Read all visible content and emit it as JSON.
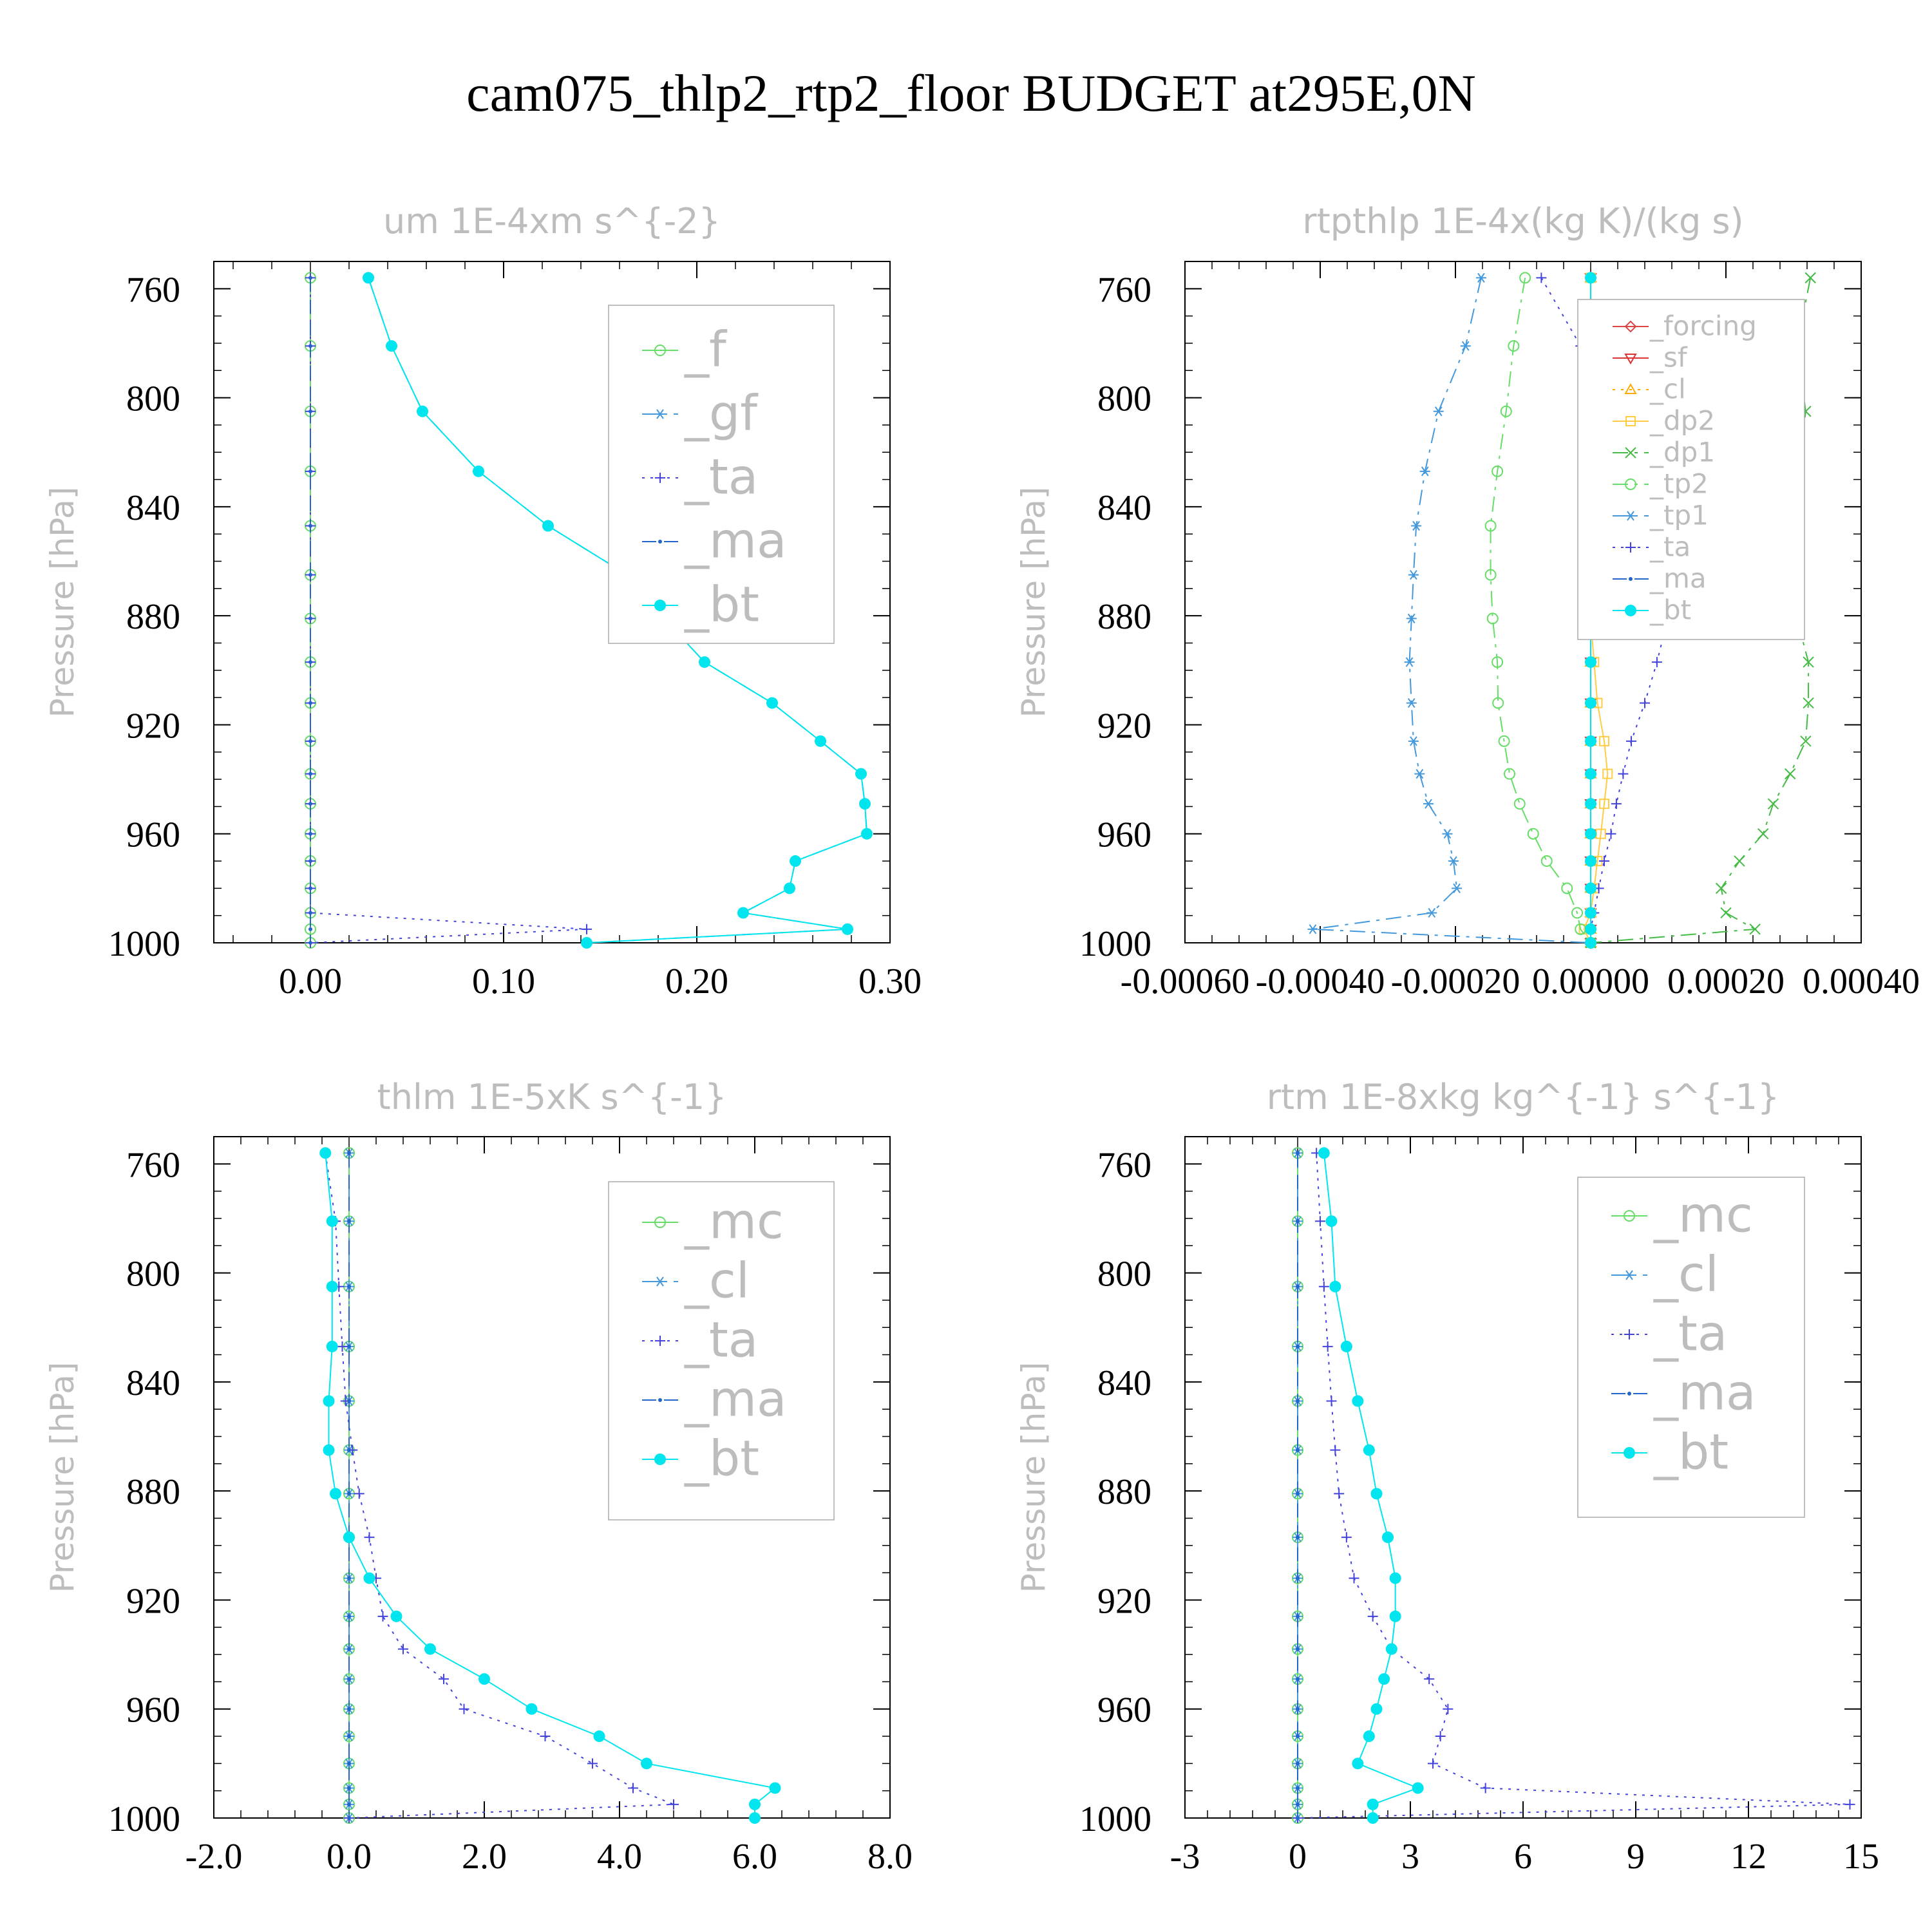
{
  "title": "cam075_thlp2_rtp2_floor  BUDGET at295E,0N",
  "chart_data": [
    {
      "type": "line",
      "title": "um  1E-4xm s^{-2}",
      "xlabel": "",
      "ylabel": "Pressure [hPa]",
      "xlim": [
        -0.05,
        0.3
      ],
      "ylim": [
        1000,
        750
      ],
      "xticks": [
        0,
        0.1,
        0.2,
        0.3
      ],
      "xtick_labels": [
        "0.00",
        "0.10",
        "0.20",
        "0.30"
      ],
      "yticks": [
        760,
        800,
        840,
        880,
        920,
        960,
        1000
      ],
      "ytick_labels": [
        "760",
        "800",
        "840",
        "880",
        "920",
        "960",
        "1000"
      ],
      "legend_position": "top-right",
      "pressure": [
        756,
        781,
        805,
        827,
        847,
        865,
        881,
        897,
        912,
        926,
        938,
        949,
        960,
        970,
        980,
        989,
        995,
        1000
      ],
      "series": [
        {
          "name": "_f",
          "color": "#66dd66",
          "marker": "circle-open",
          "dash": "none",
          "values": [
            0,
            0,
            0,
            0,
            0,
            0,
            0,
            0,
            0,
            0,
            0,
            0,
            0,
            0,
            0,
            0,
            0,
            0
          ]
        },
        {
          "name": "_gf",
          "color": "#4499dd",
          "marker": "asterisk",
          "dash": "dashdot",
          "values": [
            0.03,
            0.042,
            0.058,
            0.087,
            0.123,
            0.164,
            0.183,
            0.204,
            0.239,
            0.264,
            0.285,
            0.287,
            0.288,
            0.251,
            0.248,
            0.224,
            0.278,
            0.143
          ]
        },
        {
          "name": "_ta",
          "color": "#4444dd",
          "marker": "plus",
          "dash": "dot",
          "values": [
            0,
            0,
            0,
            0,
            0,
            0,
            0,
            0,
            0,
            0,
            0,
            0,
            0,
            0,
            0,
            0,
            0.143,
            0
          ]
        },
        {
          "name": "_ma",
          "color": "#2266cc",
          "marker": "dot",
          "dash": "dash",
          "values": [
            0,
            0,
            0,
            0,
            0,
            0,
            0,
            0,
            0,
            0,
            0,
            0,
            0,
            0,
            0,
            0,
            0,
            0
          ]
        },
        {
          "name": "_bt",
          "color": "#00e5ee",
          "marker": "circle-filled",
          "dash": "none",
          "values": [
            0.03,
            0.042,
            0.058,
            0.087,
            0.123,
            0.164,
            0.183,
            0.204,
            0.239,
            0.264,
            0.285,
            0.287,
            0.288,
            0.251,
            0.248,
            0.224,
            0.278,
            0.143
          ]
        }
      ]
    },
    {
      "type": "line",
      "title": "rtpthlp  1E-4x(kg K)/(kg s)",
      "xlabel": "",
      "ylabel": "Pressure [hPa]",
      "xlim": [
        -0.0006,
        0.0004
      ],
      "ylim": [
        1000,
        750
      ],
      "xticks": [
        -0.0006,
        -0.0004,
        -0.0002,
        0,
        0.0002,
        0.0004
      ],
      "xtick_labels": [
        "-0.00060",
        "-0.00040",
        "-0.00020",
        "0.00000",
        "0.00020",
        "0.00040"
      ],
      "yticks": [
        760,
        800,
        840,
        880,
        920,
        960,
        1000
      ],
      "ytick_labels": [
        "760",
        "800",
        "840",
        "880",
        "920",
        "960",
        "1000"
      ],
      "legend_position": "top-right",
      "pressure": [
        756,
        781,
        805,
        827,
        847,
        865,
        881,
        897,
        912,
        926,
        938,
        949,
        960,
        970,
        980,
        989,
        995,
        1000
      ],
      "series": [
        {
          "name": "_forcing",
          "color": "#dd4444",
          "marker": "diamond-open",
          "dash": "none",
          "values": [
            0,
            0,
            0,
            0,
            0,
            0,
            0,
            0,
            0,
            0,
            0,
            0,
            0,
            0,
            0,
            0,
            0,
            0
          ]
        },
        {
          "name": "_sf",
          "color": "#dd3333",
          "marker": "triangle-down",
          "dash": "none",
          "values": [
            0,
            0,
            0,
            0,
            0,
            0,
            0,
            0,
            0,
            0,
            0,
            0,
            0,
            0,
            0,
            0,
            0,
            0
          ]
        },
        {
          "name": "_cl",
          "color": "#ffaa00",
          "marker": "triangle-up",
          "dash": "dot",
          "values": [
            0,
            0,
            0,
            0,
            0,
            0,
            0,
            0,
            0,
            0,
            0,
            0,
            0,
            0,
            0,
            0,
            0,
            0
          ]
        },
        {
          "name": "_dp2",
          "color": "#ffcc44",
          "marker": "square-open",
          "dash": "none",
          "values": [
            0,
            0,
            0,
            0,
            0,
            0,
            0,
            5e-06,
            1e-05,
            2e-05,
            2.5e-05,
            2e-05,
            1.5e-05,
            1e-05,
            5e-06,
            0,
            -1e-05,
            0
          ]
        },
        {
          "name": "_dp1",
          "color": "#44bb44",
          "marker": "x",
          "dash": "dashdot",
          "values": [
            0.000325,
            0.000305,
            0.000318,
            0.000308,
            0.000294,
            0.000293,
            0.000305,
            0.000322,
            0.000322,
            0.000318,
            0.000295,
            0.00027,
            0.000255,
            0.00022,
            0.000193,
            0.0002,
            0.000243,
            0
          ]
        },
        {
          "name": "_tp2",
          "color": "#66dd66",
          "marker": "circle-open",
          "dash": "dashdot",
          "values": [
            -9.7e-05,
            -0.000114,
            -0.000125,
            -0.000138,
            -0.000148,
            -0.000148,
            -0.000145,
            -0.000138,
            -0.000137,
            -0.000128,
            -0.00012,
            -0.000105,
            -8.5e-05,
            -6.5e-05,
            -3.5e-05,
            -2e-05,
            -1.5e-05,
            0
          ]
        },
        {
          "name": "_tp1",
          "color": "#4499dd",
          "marker": "asterisk",
          "dash": "dashdot",
          "values": [
            -0.000162,
            -0.000185,
            -0.000225,
            -0.000245,
            -0.000258,
            -0.000262,
            -0.000265,
            -0.000268,
            -0.000265,
            -0.000262,
            -0.000253,
            -0.00024,
            -0.000212,
            -0.000203,
            -0.000198,
            -0.000235,
            -0.000411,
            0
          ]
        },
        {
          "name": "_ta",
          "color": "#4444dd",
          "marker": "plus",
          "dash": "dot",
          "values": [
            -7.3e-05,
            -1.5e-05,
            3e-05,
            6.5e-05,
            9e-05,
            0.000104,
            0.000114,
            9.8e-05,
            8e-05,
            6e-05,
            4.8e-05,
            3.8e-05,
            3e-05,
            2e-05,
            1.2e-05,
            5e-06,
            0,
            0
          ]
        },
        {
          "name": "_ma",
          "color": "#2266cc",
          "marker": "dot",
          "dash": "dash",
          "values": [
            0,
            0,
            0,
            0,
            0,
            0,
            0,
            0,
            0,
            0,
            0,
            0,
            0,
            0,
            0,
            0,
            0,
            0
          ]
        },
        {
          "name": "_bt",
          "color": "#00e5ee",
          "marker": "circle-filled",
          "dash": "none",
          "values": [
            0,
            0,
            0,
            0,
            0,
            0,
            0,
            0,
            0,
            0,
            0,
            0,
            0,
            0,
            0,
            0,
            0,
            0
          ]
        }
      ]
    },
    {
      "type": "line",
      "title": "thlm  1E-5xK s^{-1}",
      "xlabel": "",
      "ylabel": "Pressure [hPa]",
      "xlim": [
        -2.0,
        8.0
      ],
      "ylim": [
        1000,
        750
      ],
      "xticks": [
        -2,
        0,
        2,
        4,
        6,
        8
      ],
      "xtick_labels": [
        "-2.0",
        "0.0",
        "2.0",
        "4.0",
        "6.0",
        "8.0"
      ],
      "yticks": [
        760,
        800,
        840,
        880,
        920,
        960,
        1000
      ],
      "ytick_labels": [
        "760",
        "800",
        "840",
        "880",
        "920",
        "960",
        "1000"
      ],
      "legend_position": "top-right",
      "pressure": [
        756,
        781,
        805,
        827,
        847,
        865,
        881,
        897,
        912,
        926,
        938,
        949,
        960,
        970,
        980,
        989,
        995,
        1000
      ],
      "series": [
        {
          "name": "_mc",
          "color": "#66dd66",
          "marker": "circle-open",
          "dash": "none",
          "values": [
            0,
            0,
            0,
            0,
            0,
            0,
            0,
            0,
            0,
            0,
            0,
            0,
            0,
            0,
            0,
            0,
            0,
            0
          ]
        },
        {
          "name": "_cl",
          "color": "#4499dd",
          "marker": "asterisk",
          "dash": "dashdot",
          "values": [
            0,
            0,
            0,
            0,
            0,
            0,
            0,
            0,
            0,
            0,
            0,
            0,
            0,
            0,
            0,
            0,
            0,
            0
          ]
        },
        {
          "name": "_ta",
          "color": "#4444dd",
          "marker": "plus",
          "dash": "dot",
          "values": [
            -0.35,
            -0.2,
            -0.15,
            -0.1,
            -0.05,
            0.05,
            0.15,
            0.3,
            0.4,
            0.5,
            0.8,
            1.4,
            1.7,
            2.9,
            3.6,
            4.2,
            4.8,
            0
          ]
        },
        {
          "name": "_ma",
          "color": "#2266cc",
          "marker": "dot",
          "dash": "dash",
          "values": [
            0,
            0,
            0,
            0,
            0,
            0,
            0,
            0,
            0,
            0,
            0,
            0,
            0,
            0,
            0,
            0,
            0,
            0
          ]
        },
        {
          "name": "_bt",
          "color": "#00e5ee",
          "marker": "circle-filled",
          "dash": "none",
          "values": [
            -0.35,
            -0.25,
            -0.25,
            -0.25,
            -0.3,
            -0.3,
            -0.2,
            0,
            0.3,
            0.7,
            1.2,
            2.0,
            2.7,
            3.7,
            4.4,
            6.3,
            6.0,
            6.0
          ]
        }
      ]
    },
    {
      "type": "line",
      "title": "rtm  1E-8xkg kg^{-1} s^{-1}",
      "xlabel": "",
      "ylabel": "Pressure [hPa]",
      "xlim": [
        -3,
        15
      ],
      "ylim": [
        1000,
        750
      ],
      "xticks": [
        -3,
        0,
        3,
        6,
        9,
        12,
        15
      ],
      "xtick_labels": [
        "-3",
        "0",
        "3",
        "6",
        "9",
        "12",
        "15"
      ],
      "yticks": [
        760,
        800,
        840,
        880,
        920,
        960,
        1000
      ],
      "ytick_labels": [
        "760",
        "800",
        "840",
        "880",
        "920",
        "960",
        "1000"
      ],
      "legend_position": "top-right",
      "pressure": [
        756,
        781,
        805,
        827,
        847,
        865,
        881,
        897,
        912,
        926,
        938,
        949,
        960,
        970,
        980,
        989,
        995,
        1000
      ],
      "series": [
        {
          "name": "_mc",
          "color": "#66dd66",
          "marker": "circle-open",
          "dash": "none",
          "values": [
            0,
            0,
            0,
            0,
            0,
            0,
            0,
            0,
            0,
            0,
            0,
            0,
            0,
            0,
            0,
            0,
            0,
            0
          ]
        },
        {
          "name": "_cl",
          "color": "#4499dd",
          "marker": "asterisk",
          "dash": "dashdot",
          "values": [
            0,
            0,
            0,
            0,
            0,
            0,
            0,
            0,
            0,
            0,
            0,
            0,
            0,
            0,
            0,
            0,
            0,
            0
          ]
        },
        {
          "name": "_ta",
          "color": "#4444dd",
          "marker": "plus",
          "dash": "dot",
          "values": [
            0.5,
            0.6,
            0.7,
            0.8,
            0.9,
            1.0,
            1.1,
            1.3,
            1.5,
            2.0,
            2.5,
            3.5,
            4.0,
            3.8,
            3.6,
            5.0,
            14.7,
            0
          ]
        },
        {
          "name": "_ma",
          "color": "#2266cc",
          "marker": "dot",
          "dash": "dash",
          "values": [
            0,
            0,
            0,
            0,
            0,
            0,
            0,
            0,
            0,
            0,
            0,
            0,
            0,
            0,
            0,
            0,
            0,
            0
          ]
        },
        {
          "name": "_bt",
          "color": "#00e5ee",
          "marker": "circle-filled",
          "dash": "none",
          "values": [
            0.7,
            0.9,
            1.0,
            1.3,
            1.6,
            1.9,
            2.1,
            2.4,
            2.6,
            2.6,
            2.5,
            2.3,
            2.1,
            1.9,
            1.6,
            3.2,
            2.0,
            2.0
          ]
        }
      ]
    }
  ]
}
